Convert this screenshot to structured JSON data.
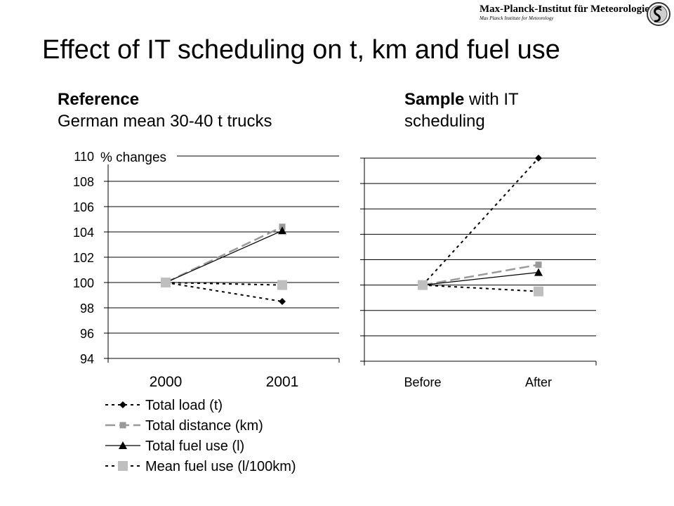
{
  "header": {
    "institute_name": "Max-Planck-Institut für Meteorologie",
    "institute_subname": "Max Planck Institute for Meteorology",
    "logo_icon": "mpg-minerva-emblem"
  },
  "title": "Effect of IT scheduling on t, km and fuel use",
  "panels": {
    "left": {
      "heading_bold": "Reference",
      "heading_rest": "German mean 30-40 t trucks"
    },
    "right": {
      "heading_bold": "Sample",
      "heading_rest_line1": " with IT",
      "heading_rest_line2": "scheduling"
    }
  },
  "colors": {
    "total_load": "#000000",
    "total_distance": "#999999",
    "total_fuel": "#000000",
    "mean_fuel": "#bfbfbf",
    "grid": "#000000"
  },
  "chart_data": [
    {
      "type": "line",
      "panel": "Reference",
      "categories": [
        "2000",
        "2001"
      ],
      "yaxis_note": "% changes",
      "ylim": [
        94,
        110
      ],
      "yticks": [
        94,
        96,
        98,
        100,
        102,
        104,
        106,
        108,
        110
      ],
      "grid": true,
      "series": [
        {
          "name": "Total load (t)",
          "values": [
            100,
            98.5
          ]
        },
        {
          "name": "Total distance (km)",
          "values": [
            100,
            104.4
          ]
        },
        {
          "name": "Total fuel use (l)",
          "values": [
            100,
            104.1
          ]
        },
        {
          "name": "Mean fuel use (l/100km)",
          "values": [
            100,
            99.8
          ]
        }
      ]
    },
    {
      "type": "line",
      "panel": "Sample with IT scheduling",
      "categories": [
        "Before",
        "After"
      ],
      "ylim": [
        94,
        110
      ],
      "grid": true,
      "series": [
        {
          "name": "Total load (t)",
          "values": [
            100,
            110
          ]
        },
        {
          "name": "Total distance (km)",
          "values": [
            100,
            101.6
          ]
        },
        {
          "name": "Total fuel use (l)",
          "values": [
            100,
            101
          ]
        },
        {
          "name": "Mean fuel use (l/100km)",
          "values": [
            100,
            99.5
          ]
        }
      ]
    }
  ],
  "legend": {
    "placement": "bottom-left",
    "entries": [
      {
        "label": "Total load (t)",
        "series": "load"
      },
      {
        "label": "Total distance (km)",
        "series": "distance"
      },
      {
        "label": "Total fuel use (l)",
        "series": "fuel"
      },
      {
        "label": "Mean fuel use (l/100km)",
        "series": "mean"
      }
    ]
  }
}
